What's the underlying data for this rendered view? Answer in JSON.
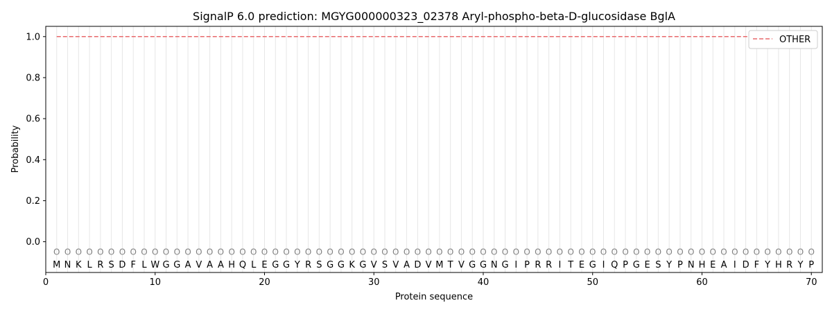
{
  "chart_data": {
    "type": "line",
    "title": "SignalP 6.0 prediction: MGYG000000323_02378 Aryl-phospho-beta-D-glucosidase BglA",
    "xlabel": "Protein sequence",
    "ylabel": "Probability",
    "xlim": [
      0,
      71
    ],
    "ylim": [
      -0.15,
      1.05
    ],
    "x_ticks": [
      0,
      10,
      20,
      30,
      40,
      50,
      60,
      70
    ],
    "y_ticks": [
      0.0,
      0.2,
      0.4,
      0.6,
      0.8,
      1.0
    ],
    "y_tick_labels": [
      "0.0",
      "0.2",
      "0.4",
      "0.6",
      "0.8",
      "1.0"
    ],
    "sequence": [
      "M",
      "N",
      "K",
      "L",
      "R",
      "S",
      "D",
      "F",
      "L",
      "W",
      "G",
      "G",
      "A",
      "V",
      "A",
      "A",
      "H",
      "Q",
      "L",
      "E",
      "G",
      "G",
      "Y",
      "R",
      "S",
      "G",
      "G",
      "K",
      "G",
      "V",
      "S",
      "V",
      "A",
      "D",
      "V",
      "M",
      "T",
      "V",
      "G",
      "G",
      "N",
      "G",
      "I",
      "P",
      "R",
      "R",
      "I",
      "T",
      "E",
      "G",
      "I",
      "Q",
      "P",
      "G",
      "E",
      "S",
      "Y",
      "P",
      "N",
      "H",
      "E",
      "A",
      "I",
      "D",
      "F",
      "Y",
      "H",
      "R",
      "Y",
      "P"
    ],
    "region_label": "O",
    "series": [
      {
        "name": "OTHER",
        "color": "#e8696b",
        "style": "dashed",
        "x_start": 1,
        "x_end": 70,
        "value": 1.0
      }
    ],
    "legend": {
      "position": "top-right",
      "entries": [
        "OTHER"
      ]
    },
    "grid": "vertical-per-residue"
  }
}
